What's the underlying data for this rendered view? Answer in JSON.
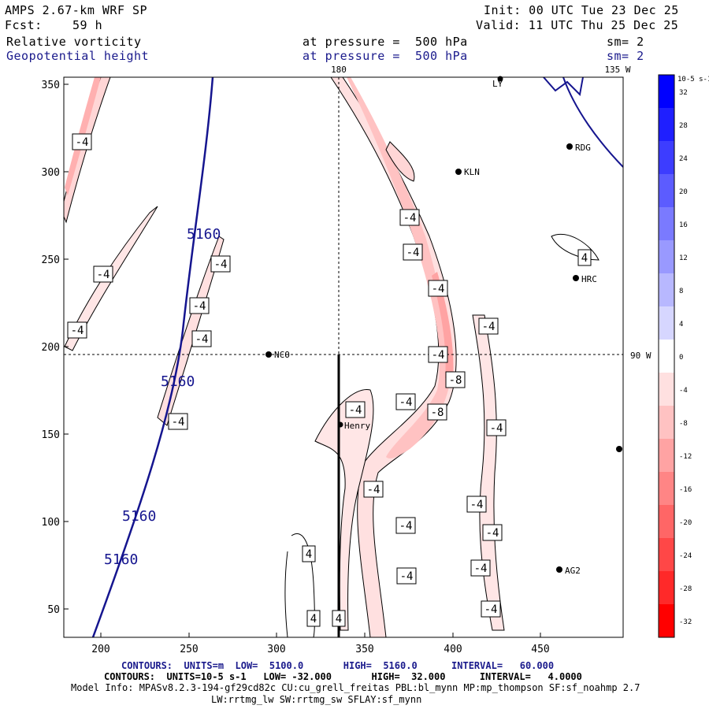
{
  "header": {
    "model": "AMPS 2.67-km WRF SP",
    "init": "Init: 00 UTC Tue 23 Dec 25",
    "fcst_label": "Fcst:",
    "fcst_value": "59 h",
    "valid": "Valid: 11 UTC Thu 25 Dec 25",
    "field1": "Relative vorticity",
    "field1_level": "at pressure =  500 hPa",
    "field1_sm": "sm= 2",
    "field2": "Geopotential height",
    "field2_level": "at pressure =  500 hPa",
    "field2_sm": "sm= 2"
  },
  "map": {
    "x_ticks": [
      "200",
      "250",
      "300",
      "350",
      "400",
      "450"
    ],
    "y_ticks": [
      "350",
      "300",
      "250",
      "200",
      "150",
      "100",
      "50"
    ],
    "lon_top": "180",
    "lon_topright": "135 W",
    "lat_right": "90 W",
    "stations": [
      "NCO",
      "Henry",
      "KLN",
      "RDG",
      "HRC",
      "AG2",
      "LY"
    ],
    "height_labels": [
      "5160",
      "5160",
      "5160",
      "5160"
    ],
    "vort_labels": [
      "-4",
      "-4",
      "-4",
      "-4",
      "-4",
      "-4",
      "-4",
      "-4",
      "-4",
      "-4",
      "-4",
      "-4",
      "-4",
      "-4",
      "-4",
      "-4",
      "-4",
      "-4",
      "-4",
      "-4",
      "-4",
      "-4",
      "-8",
      "-8",
      "4",
      "4",
      "4",
      "4"
    ]
  },
  "colorbar": {
    "unit": "10-5 s-1",
    "labels": [
      "32",
      "28",
      "24",
      "20",
      "16",
      "12",
      "8",
      "4",
      "0",
      "-4",
      "-8",
      "-12",
      "-16",
      "-20",
      "-24",
      "-28",
      "-32"
    ],
    "colors": [
      "#0000ff",
      "#1f1fff",
      "#3d3dff",
      "#5c5cff",
      "#7a7aff",
      "#9999ff",
      "#b8b8ff",
      "#d6d6ff",
      "#ffffff",
      "#ffe0e0",
      "#ffc2c2",
      "#ffa3a3",
      "#ff8585",
      "#ff6666",
      "#ff4747",
      "#ff2929",
      "#ff0000"
    ]
  },
  "footer": {
    "line1": "CONTOURS:  UNITS=m  LOW=  5100.0       HIGH=  5160.0      INTERVAL=   60.000",
    "line2": "CONTOURS:  UNITS=10-5 s-1   LOW= -32.000       HIGH=  32.000      INTERVAL=   4.0000",
    "line3": "Model Info: MPASv8.2.3-194-gf29cd82c CU:cu_grell_freitas PBL:bl_mynn MP:mp_thompson SF:sf_noahmp 2.7",
    "line4": "LW:rrtmg_lw SW:rrtmg_sw SFLAY:sf_mynn"
  }
}
